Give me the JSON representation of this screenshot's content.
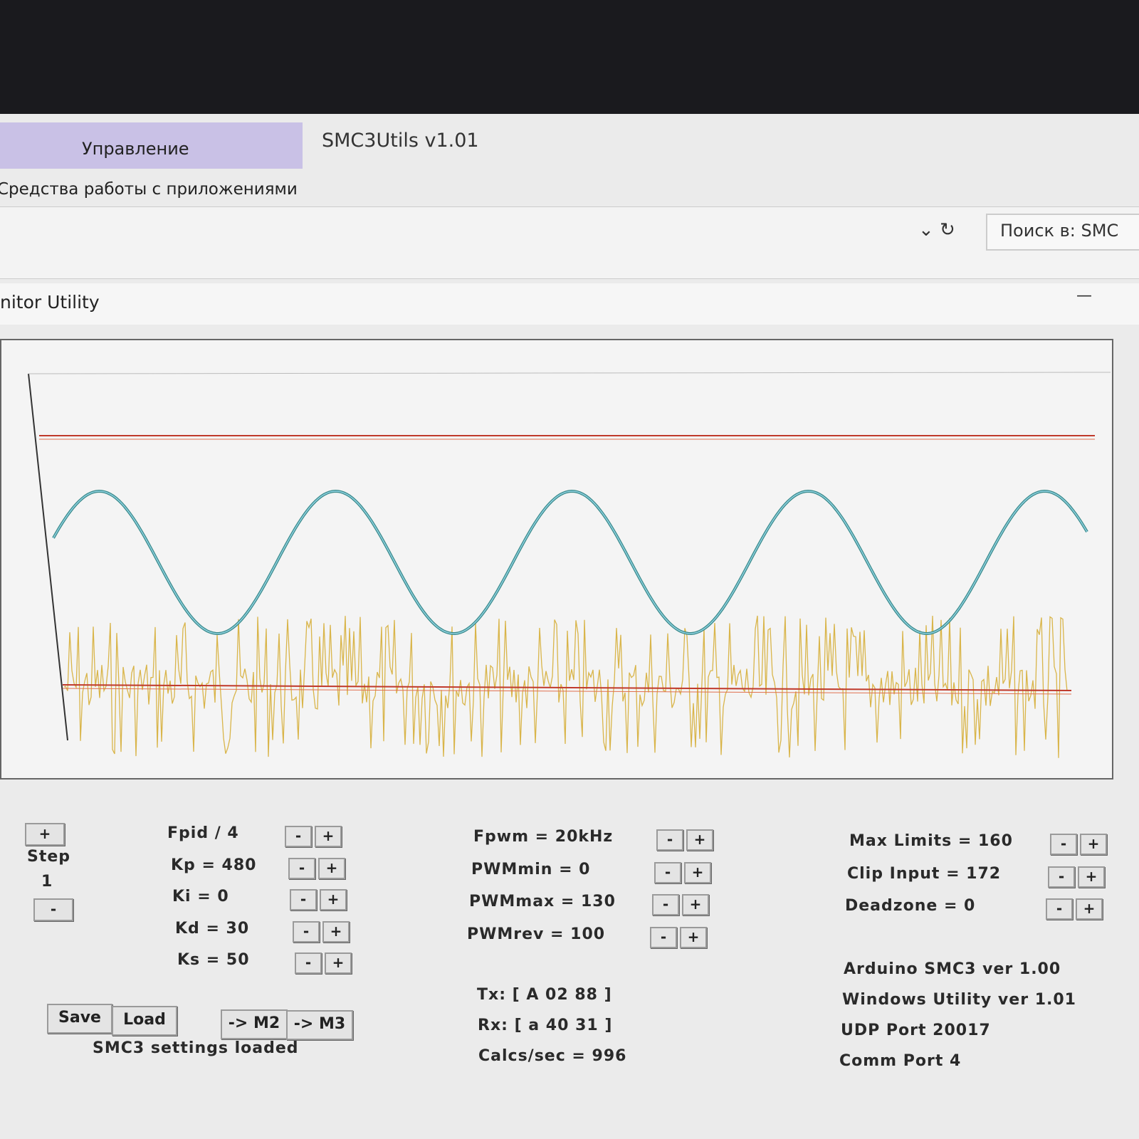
{
  "ribbon": {
    "tab": "Управление",
    "app_title": "SMC3Utils v1.01",
    "group": "Средства работы с приложениями",
    "search": "Поиск в: SMC"
  },
  "window": {
    "title": "nitor Utility",
    "minimize": "—"
  },
  "step": {
    "plus": "+",
    "label": "Step",
    "value": "1",
    "minus": "-"
  },
  "columns": [
    [
      {
        "label": "Fpid / 4",
        "minus": "-",
        "plus": "+"
      },
      {
        "label": "Kp = 480",
        "minus": "-",
        "plus": "+"
      },
      {
        "label": "Ki = 0",
        "minus": "-",
        "plus": "+"
      },
      {
        "label": "Kd = 30",
        "minus": "-",
        "plus": "+"
      },
      {
        "label": "Ks = 50",
        "minus": "-",
        "plus": "+"
      }
    ],
    [
      {
        "label": "Fpwm = 20kHz",
        "minus": "-",
        "plus": "+"
      },
      {
        "label": "PWMmin = 0",
        "minus": "-",
        "plus": "+"
      },
      {
        "label": "PWMmax = 130",
        "minus": "-",
        "plus": "+"
      },
      {
        "label": "PWMrev = 100",
        "minus": "-",
        "plus": "+"
      }
    ],
    [
      {
        "label": "Max Limits = 160",
        "minus": "-",
        "plus": "+"
      },
      {
        "label": "Clip Input = 172",
        "minus": "-",
        "plus": "+"
      },
      {
        "label": "Deadzone = 0",
        "minus": "-",
        "plus": "+"
      }
    ]
  ],
  "status": [
    "Tx: [ A 02 88 ]",
    "Rx: [ a 40 31 ]",
    "Calcs/sec = 996"
  ],
  "info": [
    "Arduino SMC3 ver 1.00",
    "Windows Utility ver 1.01",
    "UDP Port 20017",
    "Comm Port 4"
  ],
  "buttons": [
    "Save",
    "Load",
    "-> M2",
    "-> M3"
  ],
  "message": "SMC3 settings loaded"
}
